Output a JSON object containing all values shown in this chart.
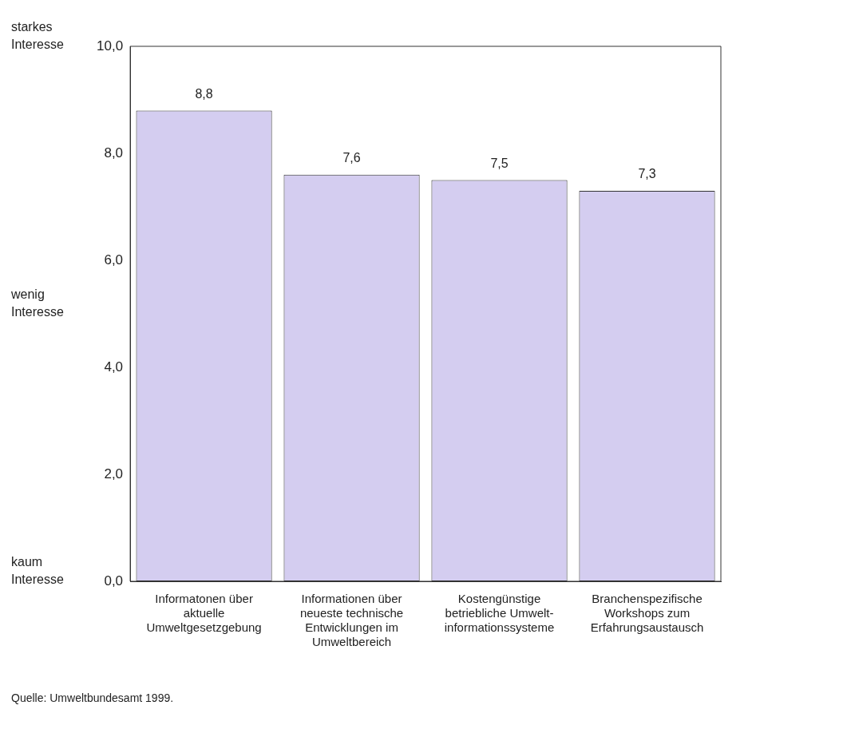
{
  "chart_data": {
    "type": "bar",
    "categories": [
      "Informatonen über\naktuelle\nUmweltgesetzgebung",
      "Informationen über\nneueste technische\nEntwicklungen im\nUmweltbereich",
      "Kostengünstige\nbetriebliche Umwelt-\ninformationssysteme",
      "Branchenspezifische\nWorkshops zum\nErfahrungsaustausch"
    ],
    "values": [
      8.8,
      7.6,
      7.5,
      7.3
    ],
    "value_labels": [
      "8,8",
      "7,6",
      "7,5",
      "7,3"
    ],
    "color": "#d4cdf0",
    "ylim": [
      0,
      10
    ],
    "yticks": [
      {
        "value": 0,
        "label": "0,0"
      },
      {
        "value": 2,
        "label": "2,0"
      },
      {
        "value": 4,
        "label": "4,0"
      },
      {
        "value": 6,
        "label": "6,0"
      },
      {
        "value": 8,
        "label": "8,0"
      },
      {
        "value": 10,
        "label": "10,0"
      }
    ],
    "grid": false,
    "legend": false,
    "annotations": [
      "starkes\nInteresse",
      "wenig\nInteresse",
      "kaum\nInteresse",
      "Quelle: Umweltbundesamt 1999."
    ]
  }
}
